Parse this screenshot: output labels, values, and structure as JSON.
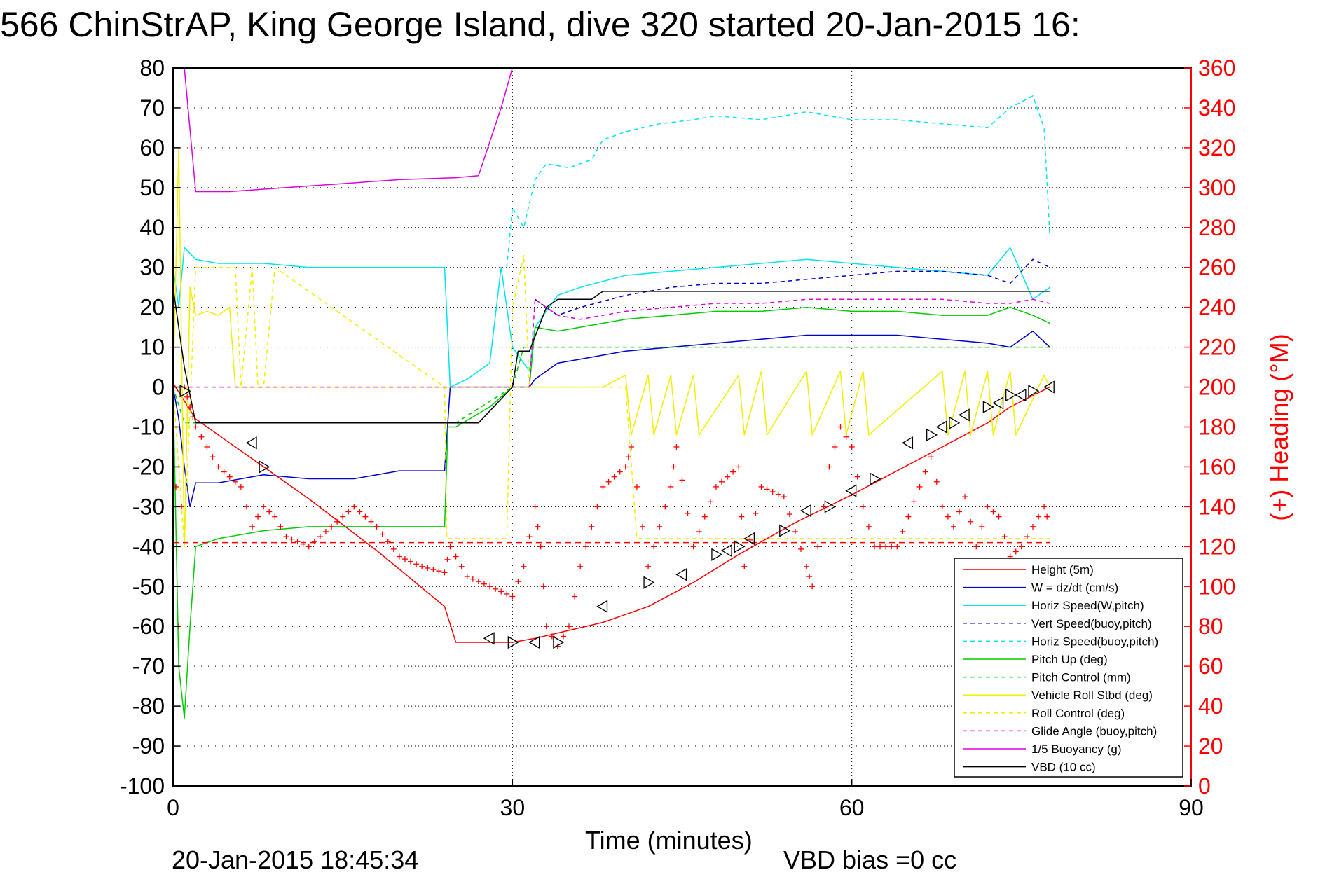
{
  "chart_data": {
    "type": "line",
    "title": "566 ChinStrAP, King George Island, dive 320 started 20-Jan-2015 16:",
    "xlabel": "Time (minutes)",
    "ylabel_right": "(+) Heading (°M)",
    "footer_left": "20-Jan-2015 18:45:34",
    "footer_right": "VBD bias =0 cc",
    "xlim": [
      0,
      90
    ],
    "ylim_left": [
      -100,
      80
    ],
    "ylim_right": [
      0,
      360
    ],
    "x_ticks": [
      "0",
      "30",
      "60",
      "90"
    ],
    "y_ticks_left": [
      "80",
      "70",
      "60",
      "50",
      "40",
      "30",
      "20",
      "10",
      "0",
      "-10",
      "-20",
      "-30",
      "-40",
      "-50",
      "-60",
      "-70",
      "-80",
      "-90",
      "-100"
    ],
    "y_ticks_right": [
      "360",
      "340",
      "320",
      "300",
      "280",
      "260",
      "240",
      "220",
      "200",
      "180",
      "160",
      "140",
      "120",
      "100",
      "80",
      "60",
      "40",
      "20",
      "0"
    ],
    "grid": true,
    "legend_position": "bottom-right",
    "colors": {
      "red": "#ff0000",
      "blue": "#0000cc",
      "cyan": "#00e5ee",
      "green": "#00cc00",
      "yellow": "#f0f000",
      "magenta": "#dd00dd",
      "black": "#000000"
    },
    "series": [
      {
        "name": "Height (5m)",
        "color": "red",
        "dash": "",
        "axis": "left",
        "x": [
          0,
          2,
          5,
          8,
          12,
          18,
          24,
          25,
          30,
          32,
          35,
          38,
          42,
          46,
          50,
          55,
          60,
          64,
          68,
          72,
          74,
          77.5
        ],
        "y": [
          1,
          -8,
          -14,
          -20,
          -28,
          -41,
          -55,
          -64,
          -64,
          -63,
          -61,
          -59,
          -55,
          -49,
          -42,
          -34,
          -27,
          -21,
          -15,
          -9,
          -5,
          0
        ]
      },
      {
        "name": "W = dz/dt (cm/s)",
        "color": "blue",
        "dash": "",
        "axis": "left",
        "x": [
          0,
          0.5,
          1,
          1.5,
          2,
          4,
          8,
          12,
          16,
          20,
          24,
          24.5,
          26,
          30,
          31.5,
          32,
          34,
          36,
          40,
          44,
          48,
          52,
          56,
          60,
          64,
          68,
          72,
          74,
          76,
          77.5
        ],
        "y": [
          0,
          -8,
          -20,
          -30,
          -24,
          -24,
          -22,
          -23,
          -23,
          -21,
          -21,
          0,
          0,
          0,
          0,
          2,
          6,
          7,
          9,
          10,
          11,
          12,
          13,
          13,
          13,
          12,
          11,
          10,
          14,
          10
        ]
      },
      {
        "name": "Horiz Speed(W,pitch)",
        "color": "cyan",
        "dash": "",
        "axis": "left",
        "x": [
          0,
          0.5,
          1,
          2,
          4,
          8,
          12,
          16,
          20,
          24,
          24.5,
          26,
          28,
          29,
          30,
          31.5,
          32,
          34,
          36,
          40,
          44,
          48,
          52,
          56,
          60,
          64,
          68,
          72,
          74,
          76,
          77.5
        ],
        "y": [
          30,
          20,
          35,
          32,
          31,
          31,
          30,
          30,
          30,
          30,
          0,
          2,
          6,
          30,
          10,
          4,
          15,
          23,
          25,
          28,
          29,
          30,
          31,
          32,
          31,
          30,
          29,
          28,
          35,
          22,
          25
        ]
      },
      {
        "name": "Vert Speed(buoy,pitch)",
        "color": "blue",
        "dash": "6,5",
        "axis": "left",
        "x": [
          32,
          34,
          36,
          40,
          44,
          48,
          52,
          56,
          60,
          64,
          68,
          72,
          74,
          76,
          77.5
        ],
        "y": [
          22,
          18,
          20,
          23,
          25,
          26,
          26,
          27,
          28,
          29,
          29,
          28,
          26,
          32,
          30
        ]
      },
      {
        "name": "Horiz Speed(buoy,pitch)",
        "color": "cyan",
        "dash": "6,5",
        "axis": "left",
        "x": [
          29.5,
          30,
          31,
          32,
          33,
          35,
          37,
          38,
          40,
          43,
          46,
          48,
          52,
          56,
          60,
          64,
          68,
          72,
          74,
          76,
          77,
          77.5
        ],
        "y": [
          30,
          45,
          40,
          52,
          56,
          55,
          57,
          62,
          64,
          66,
          67,
          68,
          67,
          69,
          67,
          67,
          66,
          65,
          70,
          73,
          65,
          38
        ]
      },
      {
        "name": "Pitch Up (deg)",
        "color": "green",
        "dash": "",
        "axis": "left",
        "x": [
          0,
          0.5,
          1,
          1.5,
          2,
          4,
          8,
          12,
          16,
          20,
          24,
          24.3,
          25,
          28,
          30,
          31.5,
          32,
          34,
          36,
          40,
          44,
          48,
          52,
          56,
          60,
          64,
          68,
          72,
          74,
          76,
          77.5
        ],
        "y": [
          0,
          -70,
          -83,
          -60,
          -40,
          -38,
          -36,
          -35,
          -35,
          -35,
          -35,
          -10,
          -10,
          -5,
          0,
          0,
          15,
          14,
          15,
          17,
          18,
          19,
          19,
          20,
          19,
          19,
          18,
          18,
          20,
          18,
          16
        ]
      },
      {
        "name": "Pitch Control (mm)",
        "color": "green",
        "dash": "6,5",
        "axis": "left",
        "x": [
          0,
          1,
          2,
          24,
          24.5,
          25,
          30,
          31,
          32,
          34,
          36,
          40,
          48,
          56,
          64,
          72,
          76,
          77.5
        ],
        "y": [
          0,
          -9,
          -9,
          -9,
          -9,
          -9,
          0,
          10,
          10,
          10,
          10,
          10,
          10,
          10,
          10,
          10,
          10,
          10
        ]
      },
      {
        "name": "Vehicle Roll Stbd (deg)",
        "color": "yellow",
        "dash": "",
        "axis": "left",
        "x": [
          0,
          0.5,
          1,
          1.5,
          2,
          3,
          4,
          5,
          5.5,
          6,
          8,
          12,
          16,
          20,
          24,
          25,
          28,
          30,
          32,
          35,
          38,
          40,
          40.5,
          42,
          42.5,
          44,
          44.5,
          46,
          46.5,
          50,
          50.5,
          52,
          52.5,
          56,
          56.5,
          59,
          59.5,
          61,
          61.5,
          68,
          68.5,
          70,
          70.5,
          72,
          72.5,
          74,
          74.5,
          77,
          77.5
        ],
        "y": [
          0,
          60,
          -40,
          25,
          18,
          19,
          18,
          20,
          0,
          0,
          0,
          0,
          0,
          0,
          0,
          0,
          0,
          0,
          0,
          0,
          0,
          3,
          -12,
          3,
          -12,
          3,
          -12,
          3,
          -12,
          3,
          -12,
          4,
          -12,
          4,
          -12,
          4,
          -12,
          4,
          -12,
          4,
          -12,
          4,
          -12,
          4,
          -12,
          4,
          -12,
          3,
          0
        ]
      },
      {
        "name": "Roll Control (deg)",
        "color": "yellow",
        "dash": "6,5",
        "axis": "left",
        "x": [
          0,
          1,
          2,
          5.5,
          6,
          7,
          7.5,
          8,
          9,
          24,
          24.2,
          26,
          29.5,
          30,
          31,
          31.5,
          32,
          36,
          40,
          41,
          42,
          44,
          44.5,
          46,
          48,
          50,
          50.5,
          52,
          54,
          56,
          56.5,
          58,
          59,
          60,
          61,
          62,
          66,
          68,
          69,
          70,
          71,
          72,
          73,
          74,
          76,
          77.5
        ],
        "y": [
          0,
          -40,
          30,
          30,
          0,
          30,
          0,
          0,
          30,
          0,
          -38,
          -38,
          -38,
          20,
          33,
          0,
          0,
          0,
          0,
          -38,
          -38,
          -38,
          -38,
          -38,
          -38,
          -38,
          -38,
          -38,
          -38,
          -38,
          -38,
          -38,
          -38,
          -38,
          -38,
          -38,
          -38,
          -38,
          -38,
          -38,
          -38,
          -38,
          -38,
          -38,
          -38,
          -38
        ]
      },
      {
        "name": "Glide Angle (buoy,pitch)",
        "color": "magenta",
        "dash": "6,5",
        "axis": "left",
        "x": [
          0,
          24,
          31.5,
          32,
          34,
          36,
          40,
          44,
          48,
          52,
          56,
          60,
          64,
          68,
          72,
          74,
          76,
          77.5
        ],
        "y": [
          0,
          0,
          0,
          22,
          18,
          17,
          19,
          20,
          21,
          21,
          22,
          22,
          22,
          22,
          21,
          21,
          22,
          21
        ]
      },
      {
        "name": "1/5 Buoyancy (g)",
        "color": "magenta",
        "dash": "",
        "axis": "left",
        "x": [
          1,
          2,
          5,
          10,
          15,
          20,
          25,
          27,
          29,
          30
        ],
        "y": [
          80,
          49,
          49,
          50,
          51,
          52,
          52.5,
          53,
          70,
          80
        ]
      },
      {
        "name": "VBD (10 cc)",
        "color": "black",
        "dash": "",
        "axis": "left",
        "x": [
          0,
          1,
          2,
          24,
          27,
          30,
          30.5,
          31.5,
          33,
          34,
          37,
          38,
          42,
          50,
          60,
          70,
          76,
          77.5
        ],
        "y": [
          25,
          5,
          -9,
          -9,
          -9,
          0,
          9,
          9,
          20,
          22,
          22,
          24,
          24,
          24,
          24,
          24,
          24,
          24
        ]
      }
    ],
    "heading": {
      "name": "Heading",
      "color": "red",
      "marker": "+",
      "axis": "right",
      "x": [
        0,
        0.5,
        1,
        1.5,
        2,
        3,
        4,
        5,
        6,
        7,
        8,
        9,
        10,
        12,
        14,
        16,
        18,
        20,
        22,
        24,
        24.5,
        26,
        28,
        30,
        31,
        32,
        32.5,
        33,
        34,
        35,
        36,
        38,
        40,
        40.5,
        42,
        44,
        44.5,
        46,
        48,
        50,
        50.5,
        52,
        54,
        56,
        56.5,
        58,
        59,
        60,
        61,
        62,
        64,
        66,
        67,
        68,
        69,
        70,
        71,
        72,
        73,
        74,
        75,
        76,
        77,
        77.5
      ],
      "y": [
        220,
        80,
        200,
        190,
        180,
        170,
        160,
        155,
        150,
        130,
        140,
        135,
        125,
        120,
        130,
        140,
        130,
        115,
        110,
        107,
        120,
        105,
        100,
        95,
        110,
        140,
        120,
        80,
        70,
        80,
        110,
        150,
        160,
        170,
        110,
        150,
        170,
        120,
        150,
        160,
        110,
        150,
        145,
        110,
        100,
        160,
        180,
        170,
        140,
        120,
        120,
        150,
        165,
        140,
        130,
        145,
        120,
        140,
        135,
        115,
        120,
        130,
        140,
        130
      ]
    },
    "heading_mean": 122,
    "triangles": {
      "x": [
        1,
        7,
        8,
        28,
        30,
        32,
        34,
        38,
        42,
        45,
        48,
        49,
        50,
        51,
        54,
        56,
        58,
        60,
        62,
        65,
        67,
        68,
        69,
        70,
        72,
        73,
        74,
        75,
        76,
        77.5
      ],
      "y": [
        -1,
        -14,
        -20,
        -63,
        -64,
        -64,
        -64,
        -55,
        -49,
        -47,
        -42,
        -41,
        -40,
        -38,
        -36,
        -31,
        -30,
        -26,
        -23,
        -14,
        -12,
        -10,
        -9,
        -7,
        -5,
        -4,
        -2,
        -2,
        -1,
        0
      ]
    },
    "legend_items": [
      {
        "label": "Height (5m)",
        "color": "red",
        "dash": ""
      },
      {
        "label": "W = dz/dt (cm/s)",
        "color": "blue",
        "dash": ""
      },
      {
        "label": "Horiz Speed(W,pitch)",
        "color": "cyan",
        "dash": ""
      },
      {
        "label": "Vert Speed(buoy,pitch)",
        "color": "blue",
        "dash": "6,5"
      },
      {
        "label": "Horiz Speed(buoy,pitch)",
        "color": "cyan",
        "dash": "6,5"
      },
      {
        "label": "Pitch Up (deg)",
        "color": "green",
        "dash": ""
      },
      {
        "label": "Pitch Control (mm)",
        "color": "green",
        "dash": "6,5"
      },
      {
        "label": "Vehicle Roll Stbd (deg)",
        "color": "yellow",
        "dash": ""
      },
      {
        "label": "Roll Control (deg)",
        "color": "yellow",
        "dash": "6,5"
      },
      {
        "label": "Glide Angle (buoy,pitch)",
        "color": "magenta",
        "dash": "6,5"
      },
      {
        "label": "1/5 Buoyancy (g)",
        "color": "magenta",
        "dash": ""
      },
      {
        "label": "VBD (10 cc)",
        "color": "black",
        "dash": ""
      }
    ]
  }
}
